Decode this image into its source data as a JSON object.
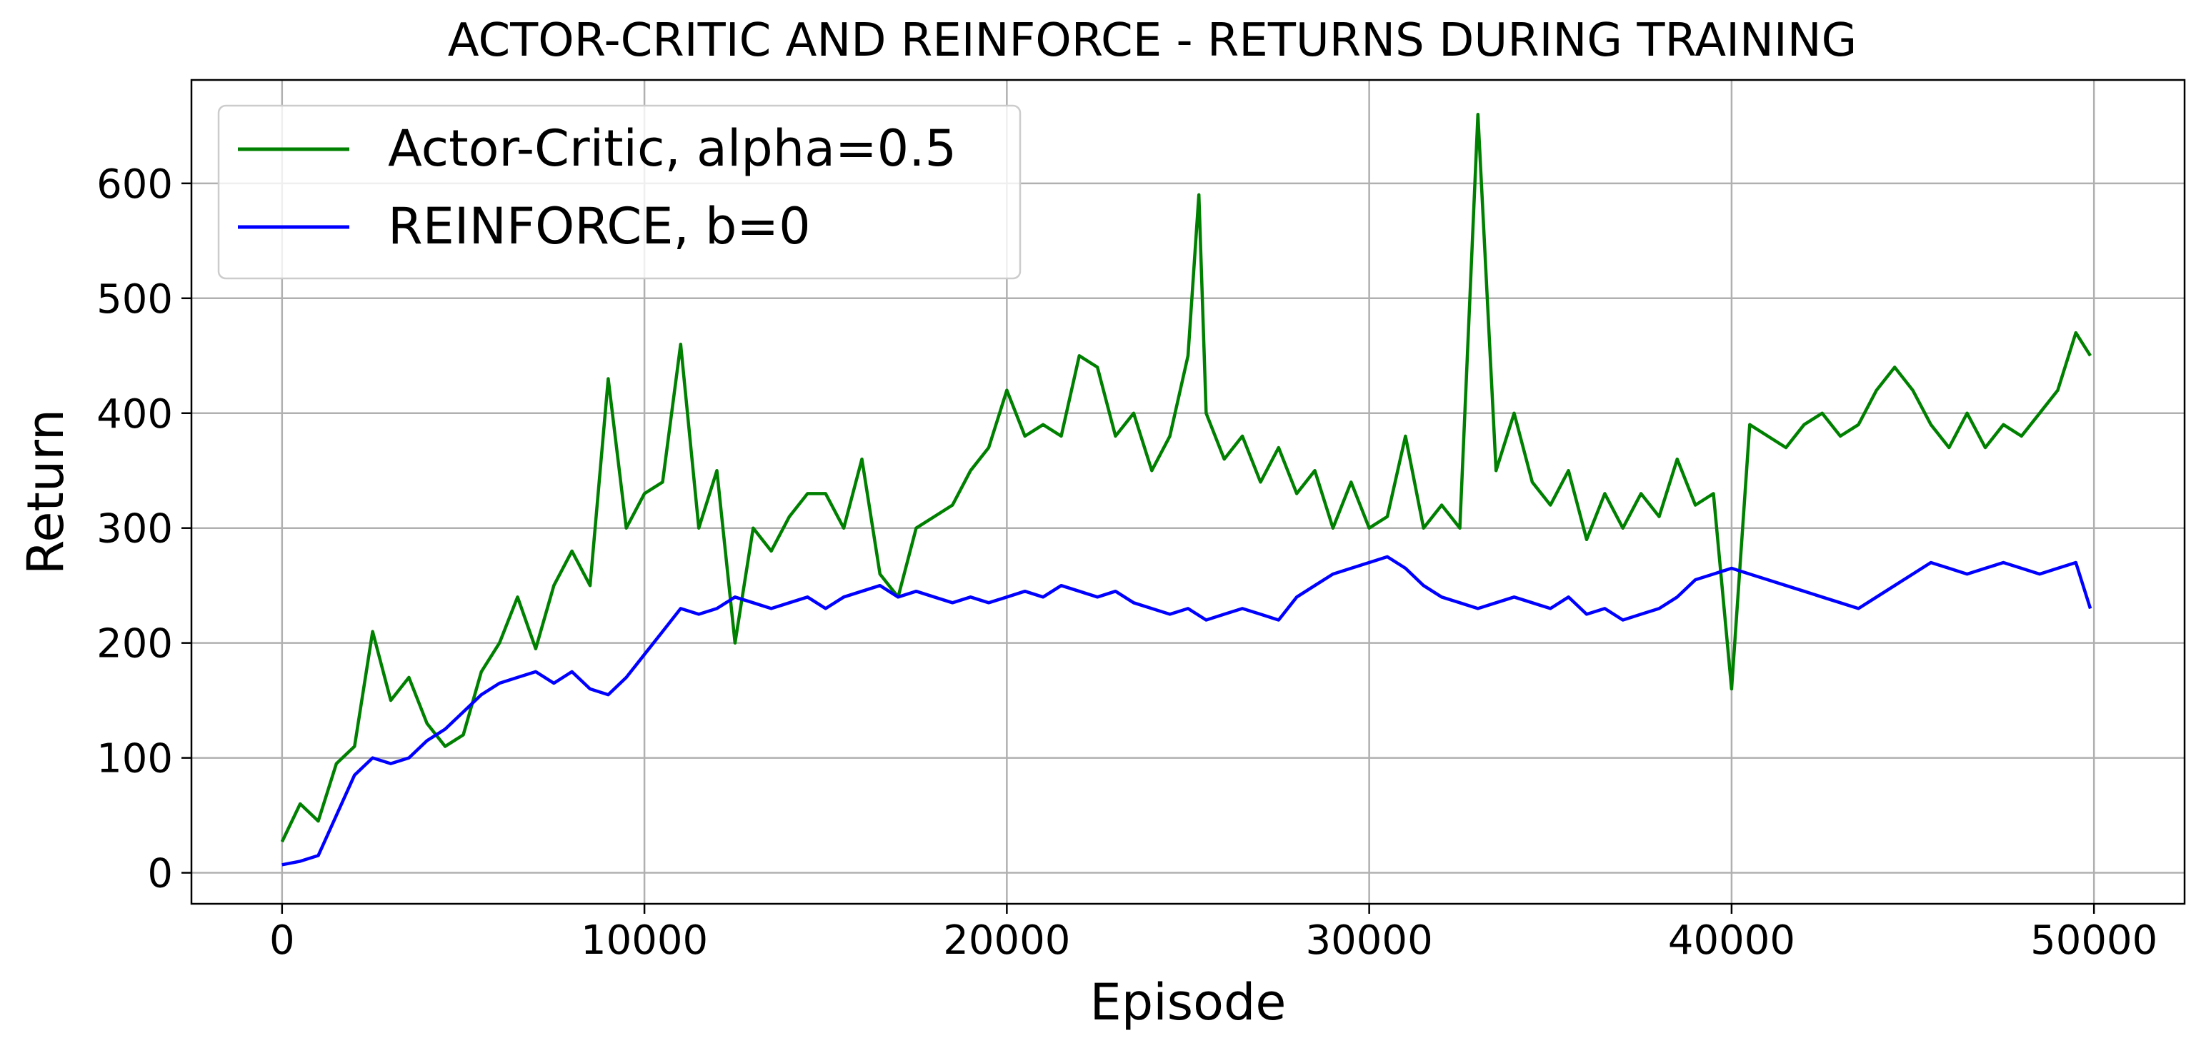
{
  "chart_data": {
    "type": "line",
    "title": "ACTOR-CRITIC AND REINFORCE - RETURNS DURING TRAINING",
    "xlabel": "Episode",
    "ylabel": "Return",
    "xlim": [
      -2500,
      52500
    ],
    "ylim": [
      -27,
      690
    ],
    "xticks": [
      0,
      10000,
      20000,
      30000,
      40000,
      50000
    ],
    "yticks": [
      0,
      100,
      200,
      300,
      400,
      500,
      600
    ],
    "grid": true,
    "legend_position": "upper-left",
    "series": [
      {
        "name": "Actor-Critic, alpha=0.5",
        "color": "#008000",
        "x": [
          0,
          500,
          1000,
          1500,
          2000,
          2500,
          3000,
          3500,
          4000,
          4500,
          5000,
          5500,
          6000,
          6500,
          7000,
          7500,
          8000,
          8500,
          9000,
          9500,
          10000,
          10500,
          11000,
          11500,
          12000,
          12500,
          13000,
          13500,
          14000,
          14500,
          15000,
          15500,
          16000,
          16500,
          17000,
          17500,
          18000,
          18500,
          19000,
          19500,
          20000,
          20500,
          21000,
          21500,
          22000,
          22500,
          23000,
          23500,
          24000,
          24500,
          25000,
          25300,
          25500,
          26000,
          26500,
          27000,
          27500,
          28000,
          28500,
          29000,
          29500,
          30000,
          30500,
          31000,
          31500,
          32000,
          32500,
          33000,
          33500,
          34000,
          34500,
          35000,
          35500,
          36000,
          36500,
          37000,
          37500,
          38000,
          38500,
          39000,
          39500,
          40000,
          40500,
          41000,
          41500,
          42000,
          42500,
          43000,
          43500,
          44000,
          44500,
          45000,
          45500,
          46000,
          46500,
          47000,
          47500,
          48000,
          48500,
          49000,
          49500,
          49900
        ],
        "y": [
          27,
          60,
          45,
          95,
          110,
          210,
          150,
          170,
          130,
          110,
          120,
          175,
          200,
          240,
          195,
          250,
          280,
          250,
          430,
          300,
          330,
          340,
          460,
          300,
          350,
          200,
          300,
          280,
          310,
          330,
          330,
          300,
          360,
          260,
          240,
          300,
          310,
          320,
          350,
          370,
          420,
          380,
          390,
          380,
          450,
          440,
          380,
          400,
          350,
          380,
          450,
          590,
          400,
          360,
          380,
          340,
          370,
          330,
          350,
          300,
          340,
          300,
          310,
          380,
          300,
          320,
          300,
          660,
          350,
          400,
          340,
          320,
          350,
          290,
          330,
          300,
          330,
          310,
          360,
          320,
          330,
          160,
          390,
          380,
          370,
          390,
          400,
          380,
          390,
          420,
          440,
          420,
          390,
          370,
          400,
          370,
          390,
          380,
          400,
          420,
          470,
          450
        ]
      },
      {
        "name": "REINFORCE, b=0",
        "color": "#0000ff",
        "x": [
          0,
          500,
          1000,
          1500,
          2000,
          2500,
          3000,
          3500,
          4000,
          4500,
          5000,
          5500,
          6000,
          6500,
          7000,
          7500,
          8000,
          8500,
          9000,
          9500,
          10000,
          10500,
          11000,
          11500,
          12000,
          12500,
          13000,
          13500,
          14000,
          14500,
          15000,
          15500,
          16000,
          16500,
          17000,
          17500,
          18000,
          18500,
          19000,
          19500,
          20000,
          20500,
          21000,
          21500,
          22000,
          22500,
          23000,
          23500,
          24000,
          24500,
          25000,
          25500,
          26000,
          26500,
          27000,
          27500,
          28000,
          28500,
          29000,
          29500,
          30000,
          30500,
          31000,
          31500,
          32000,
          32500,
          33000,
          33500,
          34000,
          34500,
          35000,
          35500,
          36000,
          36500,
          37000,
          37500,
          38000,
          38500,
          39000,
          39500,
          40000,
          40500,
          41000,
          41500,
          42000,
          42500,
          43000,
          43500,
          44000,
          44500,
          45000,
          45500,
          46000,
          46500,
          47000,
          47500,
          48000,
          48500,
          49000,
          49500,
          49900
        ],
        "y": [
          7,
          10,
          15,
          50,
          85,
          100,
          95,
          100,
          115,
          125,
          140,
          155,
          165,
          170,
          175,
          165,
          175,
          160,
          155,
          170,
          190,
          210,
          230,
          225,
          230,
          240,
          235,
          230,
          235,
          240,
          230,
          240,
          245,
          250,
          240,
          245,
          240,
          235,
          240,
          235,
          240,
          245,
          240,
          250,
          245,
          240,
          245,
          235,
          230,
          225,
          230,
          220,
          225,
          230,
          225,
          220,
          240,
          250,
          260,
          265,
          270,
          275,
          265,
          250,
          240,
          235,
          230,
          235,
          240,
          235,
          230,
          240,
          225,
          230,
          220,
          225,
          230,
          240,
          255,
          260,
          265,
          260,
          255,
          250,
          245,
          240,
          235,
          230,
          240,
          250,
          260,
          270,
          265,
          260,
          265,
          270,
          265,
          260,
          265,
          270,
          230
        ]
      }
    ]
  }
}
